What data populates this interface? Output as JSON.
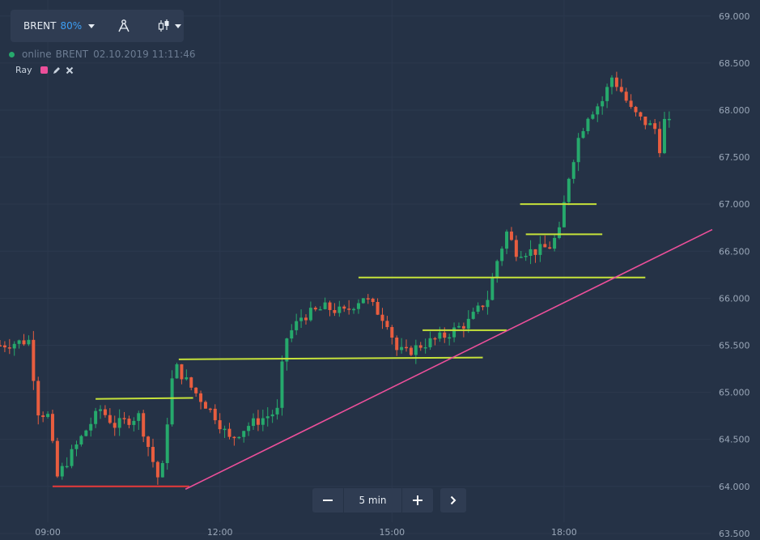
{
  "toolbar": {
    "asset_label": "BRENT",
    "payout_label": "80%",
    "icons": [
      "chevron-down-icon",
      "drawing-tools-icon",
      "candlestick-icon",
      "chevron-down-icon"
    ]
  },
  "info": {
    "status": "online",
    "asset": "BRENT",
    "datetime": "02.10.2019 11:11:46"
  },
  "drawing": {
    "name": "Ray",
    "color": "#ec4f9a",
    "icons": [
      "pencil-icon",
      "close-icon"
    ]
  },
  "controls": {
    "minus_label": "−",
    "interval_label": "5 min",
    "plus_label": "+",
    "next_icon": "chevron-right-icon"
  },
  "chart_data": {
    "type": "candlestick",
    "yticks": [
      "69.000",
      "68.500",
      "68.000",
      "67.500",
      "67.000",
      "66.500",
      "66.000",
      "65.500",
      "65.000",
      "64.500",
      "64.000",
      "63.500"
    ],
    "xticks": [
      {
        "label": "09:00",
        "t": 0
      },
      {
        "label": "12:00",
        "t": 180
      },
      {
        "label": "15:00",
        "t": 360
      },
      {
        "label": "18:00",
        "t": 540
      }
    ],
    "ylim": [
      63.43,
      69.17
    ],
    "xlim": [
      -50,
      695
    ],
    "colors": {
      "up": "#26a96c",
      "down": "#e85d3f"
    },
    "anchors": [
      [
        -50,
        65.5
      ],
      [
        -20,
        65.55
      ],
      [
        -10,
        64.8
      ],
      [
        0,
        64.75
      ],
      [
        10,
        64.1
      ],
      [
        25,
        64.35
      ],
      [
        40,
        64.6
      ],
      [
        55,
        64.82
      ],
      [
        70,
        64.65
      ],
      [
        95,
        64.75
      ],
      [
        112,
        64.2
      ],
      [
        118,
        64.0
      ],
      [
        125,
        64.7
      ],
      [
        132,
        65.3
      ],
      [
        150,
        65.05
      ],
      [
        175,
        64.75
      ],
      [
        190,
        64.5
      ],
      [
        210,
        64.65
      ],
      [
        240,
        64.8
      ],
      [
        248,
        65.55
      ],
      [
        265,
        65.8
      ],
      [
        290,
        65.9
      ],
      [
        310,
        65.85
      ],
      [
        330,
        66.02
      ],
      [
        355,
        65.75
      ],
      [
        365,
        65.45
      ],
      [
        375,
        65.42
      ],
      [
        390,
        65.5
      ],
      [
        415,
        65.6
      ],
      [
        440,
        65.75
      ],
      [
        460,
        66.0
      ],
      [
        470,
        66.4
      ],
      [
        480,
        66.7
      ],
      [
        490,
        66.5
      ],
      [
        510,
        66.5
      ],
      [
        525,
        66.55
      ],
      [
        535,
        66.7
      ],
      [
        545,
        67.3
      ],
      [
        555,
        67.7
      ],
      [
        565,
        67.95
      ],
      [
        580,
        68.1
      ],
      [
        590,
        68.35
      ],
      [
        600,
        68.2
      ],
      [
        610,
        68.0
      ],
      [
        620,
        67.9
      ],
      [
        635,
        67.8
      ],
      [
        640,
        67.6
      ],
      [
        648,
        68.05
      ],
      [
        650,
        67.85
      ]
    ],
    "lines": [
      {
        "name": "support-line",
        "color": "#e83a3a",
        "from": [
          5,
          64.0
        ],
        "to": [
          148,
          64.0
        ]
      },
      {
        "name": "level-line",
        "color": "#c6e23a",
        "from": [
          50,
          64.93
        ],
        "to": [
          152,
          64.94
        ]
      },
      {
        "name": "level-line",
        "color": "#c6e23a",
        "from": [
          137,
          65.35
        ],
        "to": [
          455,
          65.37
        ]
      },
      {
        "name": "level-line",
        "color": "#c6e23a",
        "from": [
          325,
          66.22
        ],
        "to": [
          625,
          66.22
        ]
      },
      {
        "name": "level-line",
        "color": "#c6e23a",
        "from": [
          392,
          65.66
        ],
        "to": [
          480,
          65.66
        ]
      },
      {
        "name": "level-line",
        "color": "#c6e23a",
        "from": [
          500,
          66.68
        ],
        "to": [
          580,
          66.68
        ]
      },
      {
        "name": "level-line",
        "color": "#c6e23a",
        "from": [
          494,
          67.0
        ],
        "to": [
          574,
          67.0
        ]
      },
      {
        "name": "trend-ray",
        "color": "#ec4f9a",
        "from": [
          144,
          63.97
        ],
        "to": [
          695,
          66.73
        ]
      }
    ]
  }
}
